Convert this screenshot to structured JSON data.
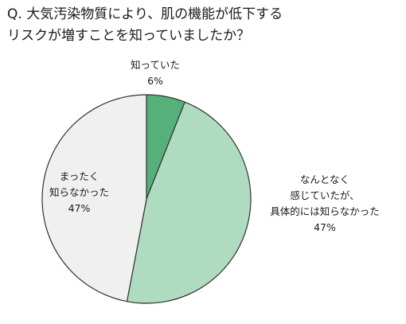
{
  "question": {
    "line1": "Q. 大気汚染物質により、肌の機能が低下する",
    "line2": "リスクが増すことを知っていましたか？"
  },
  "chart_data": {
    "type": "pie",
    "start_angle_deg": 0,
    "direction": "clockwise",
    "slices": [
      {
        "label_lines": [
          "知っていた"
        ],
        "value": 6,
        "value_label": "6%",
        "color": "#55b07a"
      },
      {
        "label_lines": [
          "なんとなく",
          "感じていたが、",
          "具体的には知らなかった"
        ],
        "value": 47,
        "value_label": "47%",
        "color": "#afdcc0"
      },
      {
        "label_lines": [
          "まったく",
          "知らなかった"
        ],
        "value": 47,
        "value_label": "47%",
        "color": "#f0f0f0"
      }
    ],
    "stroke_color": "#333333"
  }
}
